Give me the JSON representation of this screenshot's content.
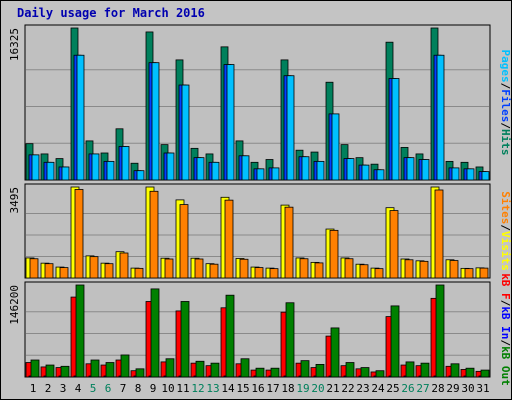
{
  "title": "Daily usage for March 2016",
  "colors": {
    "hits": "#00805c",
    "files": "#0040ff",
    "pages": "#00c0ff",
    "visits": "#ffff00",
    "sites": "#ff8000",
    "kb_in": "#0000ff",
    "kb_out": "#008000",
    "kb_f": "#ff0000",
    "weekend_label": "#00805c",
    "weekday_label": "#000000"
  },
  "chart_data": [
    {
      "type": "bar",
      "name": "hits-files-pages",
      "ymax_label": "16325",
      "ylim": [
        0,
        16325
      ],
      "legend": [
        "Pages",
        "/",
        "Files",
        "/",
        "Hits"
      ],
      "categories": [
        "1",
        "2",
        "3",
        "4",
        "5",
        "6",
        "7",
        "8",
        "9",
        "10",
        "11",
        "12",
        "13",
        "14",
        "15",
        "16",
        "17",
        "18",
        "19",
        "20",
        "21",
        "22",
        "23",
        "24",
        "25",
        "26",
        "27",
        "28",
        "29",
        "30",
        "31"
      ],
      "series": [
        {
          "name": "Hits",
          "values": [
            3900,
            2800,
            2300,
            16325,
            4200,
            2900,
            5500,
            1800,
            15900,
            3800,
            12900,
            3400,
            2800,
            14300,
            4200,
            1900,
            2200,
            12900,
            3200,
            3000,
            10500,
            3800,
            2400,
            1700,
            14800,
            3500,
            2800,
            16325,
            2000,
            1900,
            1400
          ]
        },
        {
          "name": "Files",
          "values": [
            2700,
            1900,
            1400,
            13400,
            2800,
            2000,
            3600,
            1000,
            12600,
            2900,
            10200,
            2400,
            1900,
            12400,
            2600,
            1200,
            1300,
            11200,
            2500,
            2000,
            7100,
            2300,
            1600,
            1100,
            10900,
            2400,
            2200,
            13400,
            1300,
            1200,
            900
          ]
        },
        {
          "name": "Pages",
          "values": [
            2700,
            1900,
            1400,
            13400,
            2800,
            2000,
            3600,
            1000,
            12600,
            2900,
            10200,
            2400,
            1900,
            12400,
            2600,
            1200,
            1300,
            11200,
            2500,
            2000,
            7100,
            2300,
            1600,
            1100,
            10900,
            2400,
            2200,
            13400,
            1300,
            1200,
            900
          ]
        }
      ]
    },
    {
      "type": "bar",
      "name": "visits-sites",
      "ymax_label": "3495",
      "ylim": [
        0,
        3495
      ],
      "legend": [
        "Sites",
        "/",
        "Visits"
      ],
      "categories": [
        "1",
        "2",
        "3",
        "4",
        "5",
        "6",
        "7",
        "8",
        "9",
        "10",
        "11",
        "12",
        "13",
        "14",
        "15",
        "16",
        "17",
        "18",
        "19",
        "20",
        "21",
        "22",
        "23",
        "24",
        "25",
        "26",
        "27",
        "28",
        "29",
        "30",
        "31"
      ],
      "series": [
        {
          "name": "Visits",
          "values": [
            770,
            570,
            420,
            3495,
            850,
            570,
            1010,
            380,
            3495,
            760,
            3000,
            760,
            550,
            3100,
            750,
            420,
            380,
            2800,
            770,
            600,
            1880,
            770,
            530,
            380,
            2700,
            730,
            660,
            3495,
            700,
            370,
            390
          ]
        },
        {
          "name": "Sites",
          "values": [
            740,
            550,
            400,
            3400,
            820,
            550,
            960,
            370,
            3330,
            730,
            2820,
            730,
            530,
            2990,
            720,
            400,
            360,
            2720,
            740,
            580,
            1830,
            740,
            510,
            360,
            2590,
            700,
            640,
            3380,
            670,
            360,
            380
          ]
        }
      ]
    },
    {
      "type": "bar",
      "name": "kbytes",
      "ymax_label": "146200",
      "ylim": [
        0,
        146200
      ],
      "legend": [
        "kB F",
        "/",
        "kB In",
        "/",
        "kB Out"
      ],
      "categories": [
        "1",
        "2",
        "3",
        "4",
        "5",
        "6",
        "7",
        "8",
        "9",
        "10",
        "11",
        "12",
        "13",
        "14",
        "15",
        "16",
        "17",
        "18",
        "19",
        "20",
        "21",
        "22",
        "23",
        "24",
        "25",
        "26",
        "27",
        "28",
        "29",
        "30",
        "31"
      ],
      "series": [
        {
          "name": "kB F",
          "values": [
            23000,
            16000,
            15000,
            127000,
            21000,
            19000,
            27000,
            10000,
            120000,
            24000,
            105000,
            22000,
            18000,
            110000,
            21000,
            11000,
            11000,
            103000,
            22000,
            15000,
            65000,
            18000,
            13000,
            8000,
            96000,
            19000,
            18000,
            125000,
            17000,
            12000,
            9000
          ]
        },
        {
          "name": "kB In",
          "values": [
            400,
            300,
            300,
            1000,
            400,
            300,
            400,
            200,
            900,
            400,
            800,
            400,
            300,
            900,
            400,
            200,
            200,
            800,
            300,
            300,
            600,
            300,
            200,
            200,
            800,
            300,
            300,
            1000,
            300,
            200,
            200
          ]
        },
        {
          "name": "kB Out",
          "values": [
            27000,
            19000,
            17000,
            146200,
            27000,
            23000,
            35000,
            13000,
            140000,
            29000,
            120000,
            25000,
            22000,
            130000,
            29000,
            14000,
            14000,
            118000,
            26000,
            20000,
            78000,
            23000,
            15000,
            10000,
            113000,
            24000,
            22000,
            146200,
            21000,
            14000,
            11000
          ]
        }
      ]
    }
  ],
  "x_labels": [
    "1",
    "2",
    "3",
    "4",
    "5",
    "6",
    "7",
    "8",
    "9",
    "10",
    "11",
    "12",
    "13",
    "14",
    "15",
    "16",
    "17",
    "18",
    "19",
    "20",
    "21",
    "22",
    "23",
    "24",
    "25",
    "26",
    "27",
    "28",
    "29",
    "30",
    "31"
  ],
  "weekend_days": [
    "5",
    "6",
    "12",
    "13",
    "19",
    "20",
    "26",
    "27"
  ]
}
